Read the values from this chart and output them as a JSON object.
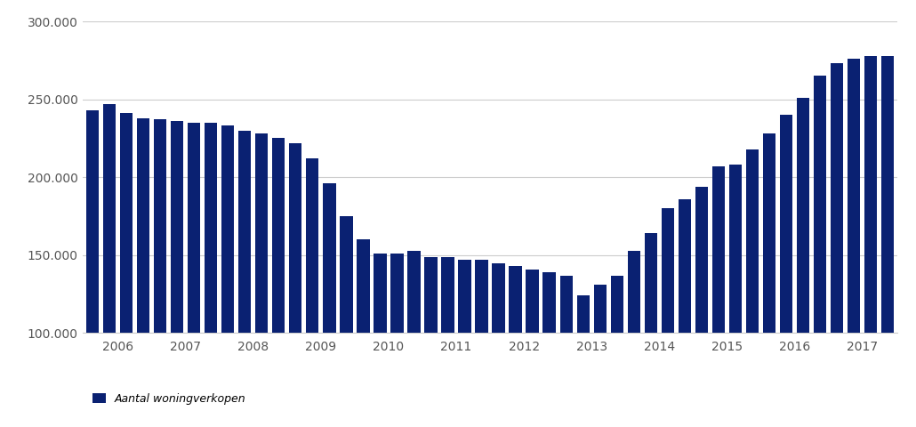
{
  "values": [
    243000,
    247000,
    241000,
    238000,
    237000,
    236000,
    235000,
    235000,
    233000,
    230000,
    228000,
    225000,
    222000,
    212000,
    196000,
    175000,
    160000,
    151000,
    151000,
    153000,
    149000,
    149000,
    147000,
    147000,
    145000,
    143000,
    141000,
    139000,
    137000,
    124000,
    131000,
    137000,
    153000,
    164000,
    180000,
    186000,
    194000,
    207000,
    208000,
    218000,
    228000,
    240000,
    251000,
    265000,
    273000,
    276000,
    278000,
    278000
  ],
  "bars_per_year": [
    4,
    4,
    4,
    4,
    4,
    4,
    4,
    4,
    4,
    4,
    4,
    4
  ],
  "bar_color": "#0A2172",
  "ylim": [
    100000,
    300000
  ],
  "yticks": [
    100000,
    150000,
    200000,
    250000,
    300000
  ],
  "ytick_labels": [
    "100.000",
    "150.000",
    "200.000",
    "250.000",
    "300.000"
  ],
  "year_labels": [
    "2006",
    "2007",
    "2008",
    "2009",
    "2010",
    "2011",
    "2012",
    "2013",
    "2014",
    "2015",
    "2016",
    "2017"
  ],
  "legend_label": "Aantal woningverkopen",
  "grid_color": "#cccccc",
  "background_color": "#ffffff",
  "bar_width": 0.75
}
